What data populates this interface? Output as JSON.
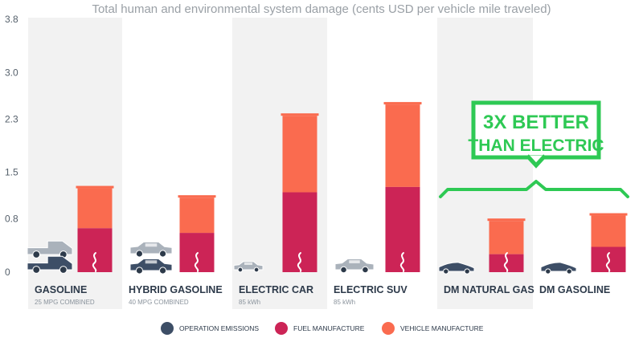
{
  "chart_data": {
    "type": "bar",
    "title": "Total human and environmental system damage (cents USD per vehicle mile traveled)",
    "y_ticks": [
      "0",
      "0.8",
      "1.5",
      "2.3",
      "3.0",
      "3.8"
    ],
    "ylim": [
      0,
      3.8
    ],
    "categories": [
      {
        "label": "GASOLINE",
        "sublabel": "25 MPG COMBINED"
      },
      {
        "label": "HYBRID GASOLINE",
        "sublabel": "40 MPG COMBINED"
      },
      {
        "label": "ELECTRIC CAR",
        "sublabel": "85 kWh"
      },
      {
        "label": "ELECTRIC SUV",
        "sublabel": "85 kWh"
      },
      {
        "label": "DM NATURAL GAS",
        "sublabel": ""
      },
      {
        "label": "DM GASOLINE",
        "sublabel": ""
      }
    ],
    "series": [
      {
        "name": "OPERATION EMISSIONS",
        "color": "#3d4e66",
        "values": [
          0,
          0,
          0,
          0,
          0,
          0
        ]
      },
      {
        "name": "FUEL MANUFACTURE",
        "color": "#cc2456",
        "values": [
          0.66,
          0.59,
          1.2,
          1.28,
          0.27,
          0.38
        ]
      },
      {
        "name": "VEHICLE MANUFACTURE",
        "color": "#fa6b4f",
        "values": [
          0.6,
          0.53,
          1.15,
          1.24,
          0.5,
          0.47
        ]
      }
    ],
    "callout": {
      "line1": "3X BETTER",
      "line2": "THAN ELECTRIC",
      "color": "#2ec954"
    },
    "grid": false,
    "legend_position": "bottom-center"
  }
}
